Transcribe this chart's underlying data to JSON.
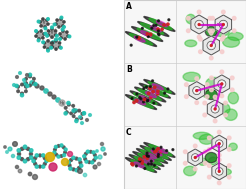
{
  "fig_width": 2.46,
  "fig_height": 1.89,
  "dpi": 100,
  "background_color": "#ffffff",
  "border_color": "#cccccc",
  "left_bg": "#ffffff",
  "right_bg": "#f5f5f5",
  "atom_colors": {
    "C": "#505050",
    "F": "#20c0b0",
    "Hg": "#a0a0a0",
    "H": "#d8d8d8",
    "Au": "#d4aa00",
    "Mg": "#cc2266",
    "green": "#33bb33",
    "magenta": "#cc00cc",
    "red": "#cc2222",
    "dark": "#222222",
    "gray": "#888888",
    "white": "#f0f0f0",
    "pink": "#ffaacc"
  },
  "row_labels": [
    "A",
    "B",
    "C"
  ],
  "label_fontsize": 5.5
}
